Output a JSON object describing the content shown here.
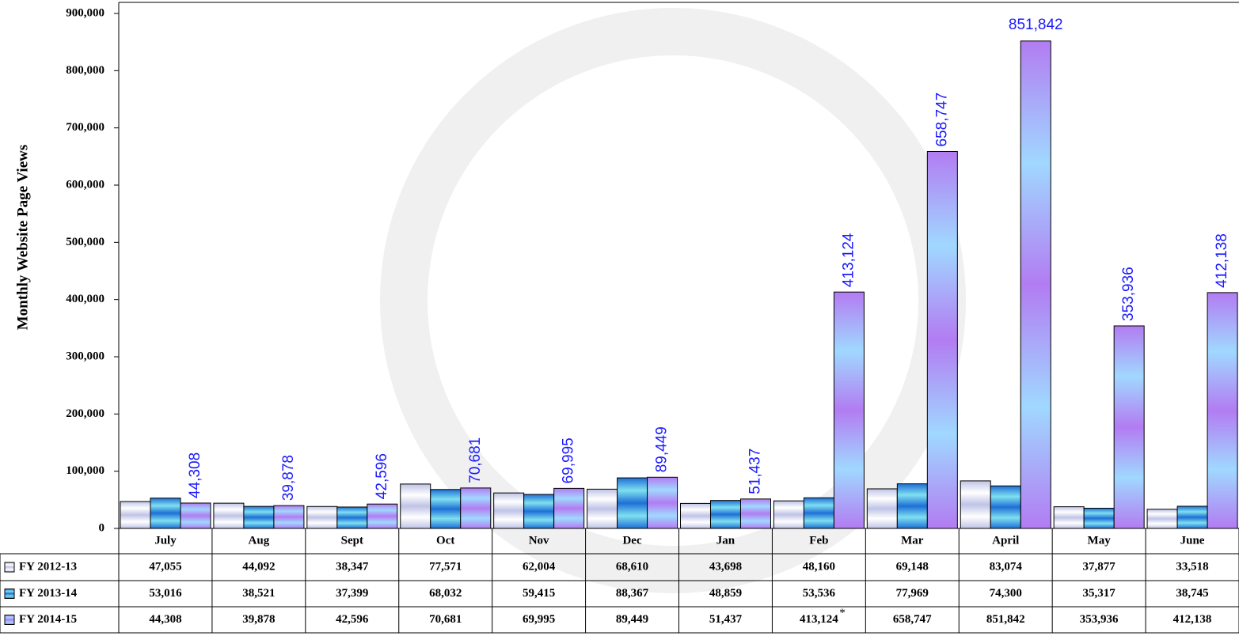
{
  "chart_data": {
    "type": "bar",
    "y_axis_label": "Monthly Website Page Views",
    "categories": [
      "July",
      "Aug",
      "Sept",
      "Oct",
      "Nov",
      "Dec",
      "Jan",
      "Feb",
      "Mar",
      "April",
      "May",
      "June"
    ],
    "series": [
      {
        "name": "FY 2012-13",
        "color": "#bfc3e6",
        "values": [
          47055,
          44092,
          38347,
          77571,
          62004,
          68610,
          43698,
          48160,
          69148,
          83074,
          37877,
          33518
        ],
        "value_labels": [
          "47,055",
          "44,092",
          "38,347",
          "77,571",
          "62,004",
          "68,610",
          "43,698",
          "48,160",
          "69,148",
          "83,074",
          "37,877",
          "33,518"
        ]
      },
      {
        "name": "FY 2013-14",
        "color": "#1f6fd6",
        "values": [
          53016,
          38521,
          37399,
          68032,
          59415,
          88367,
          48859,
          53536,
          77969,
          74300,
          35317,
          38745
        ],
        "value_labels": [
          "53,016",
          "38,521",
          "37,399",
          "68,032",
          "59,415",
          "88,367",
          "48,859",
          "53,536",
          "77,969",
          "74,300",
          "35,317",
          "38,745"
        ]
      },
      {
        "name": "FY 2014-15",
        "color": "#b27cf2",
        "values": [
          44308,
          39878,
          42596,
          70681,
          69995,
          89449,
          51437,
          413124,
          658747,
          851842,
          353936,
          412138
        ],
        "value_labels": [
          "44,308",
          "39,878",
          "42,596",
          "70,681",
          "69,995",
          "89,449",
          "51,437",
          "413,124",
          "658,747",
          "851,842",
          "353,936",
          "412,138"
        ]
      }
    ],
    "annotation": {
      "text": "*",
      "category": "Feb",
      "series": "FY 2014-15"
    },
    "data_label_color": "#1a1aff",
    "ylim": [
      0,
      900000
    ],
    "yticks": [
      0,
      {
        "value": 100000,
        "label": "100,000"
      },
      {
        "value": 200000,
        "label": "200,000"
      },
      {
        "value": 300000,
        "label": "300,000"
      },
      {
        "value": 400000,
        "label": "400,000"
      },
      {
        "value": 500000,
        "label": "500,000"
      },
      {
        "value": 600000,
        "label": "600,000"
      },
      {
        "value": 700000,
        "label": "700,000"
      },
      {
        "value": 800000,
        "label": "800,000"
      },
      {
        "value": 900000,
        "label": "900,000"
      }
    ],
    "grid": false
  }
}
